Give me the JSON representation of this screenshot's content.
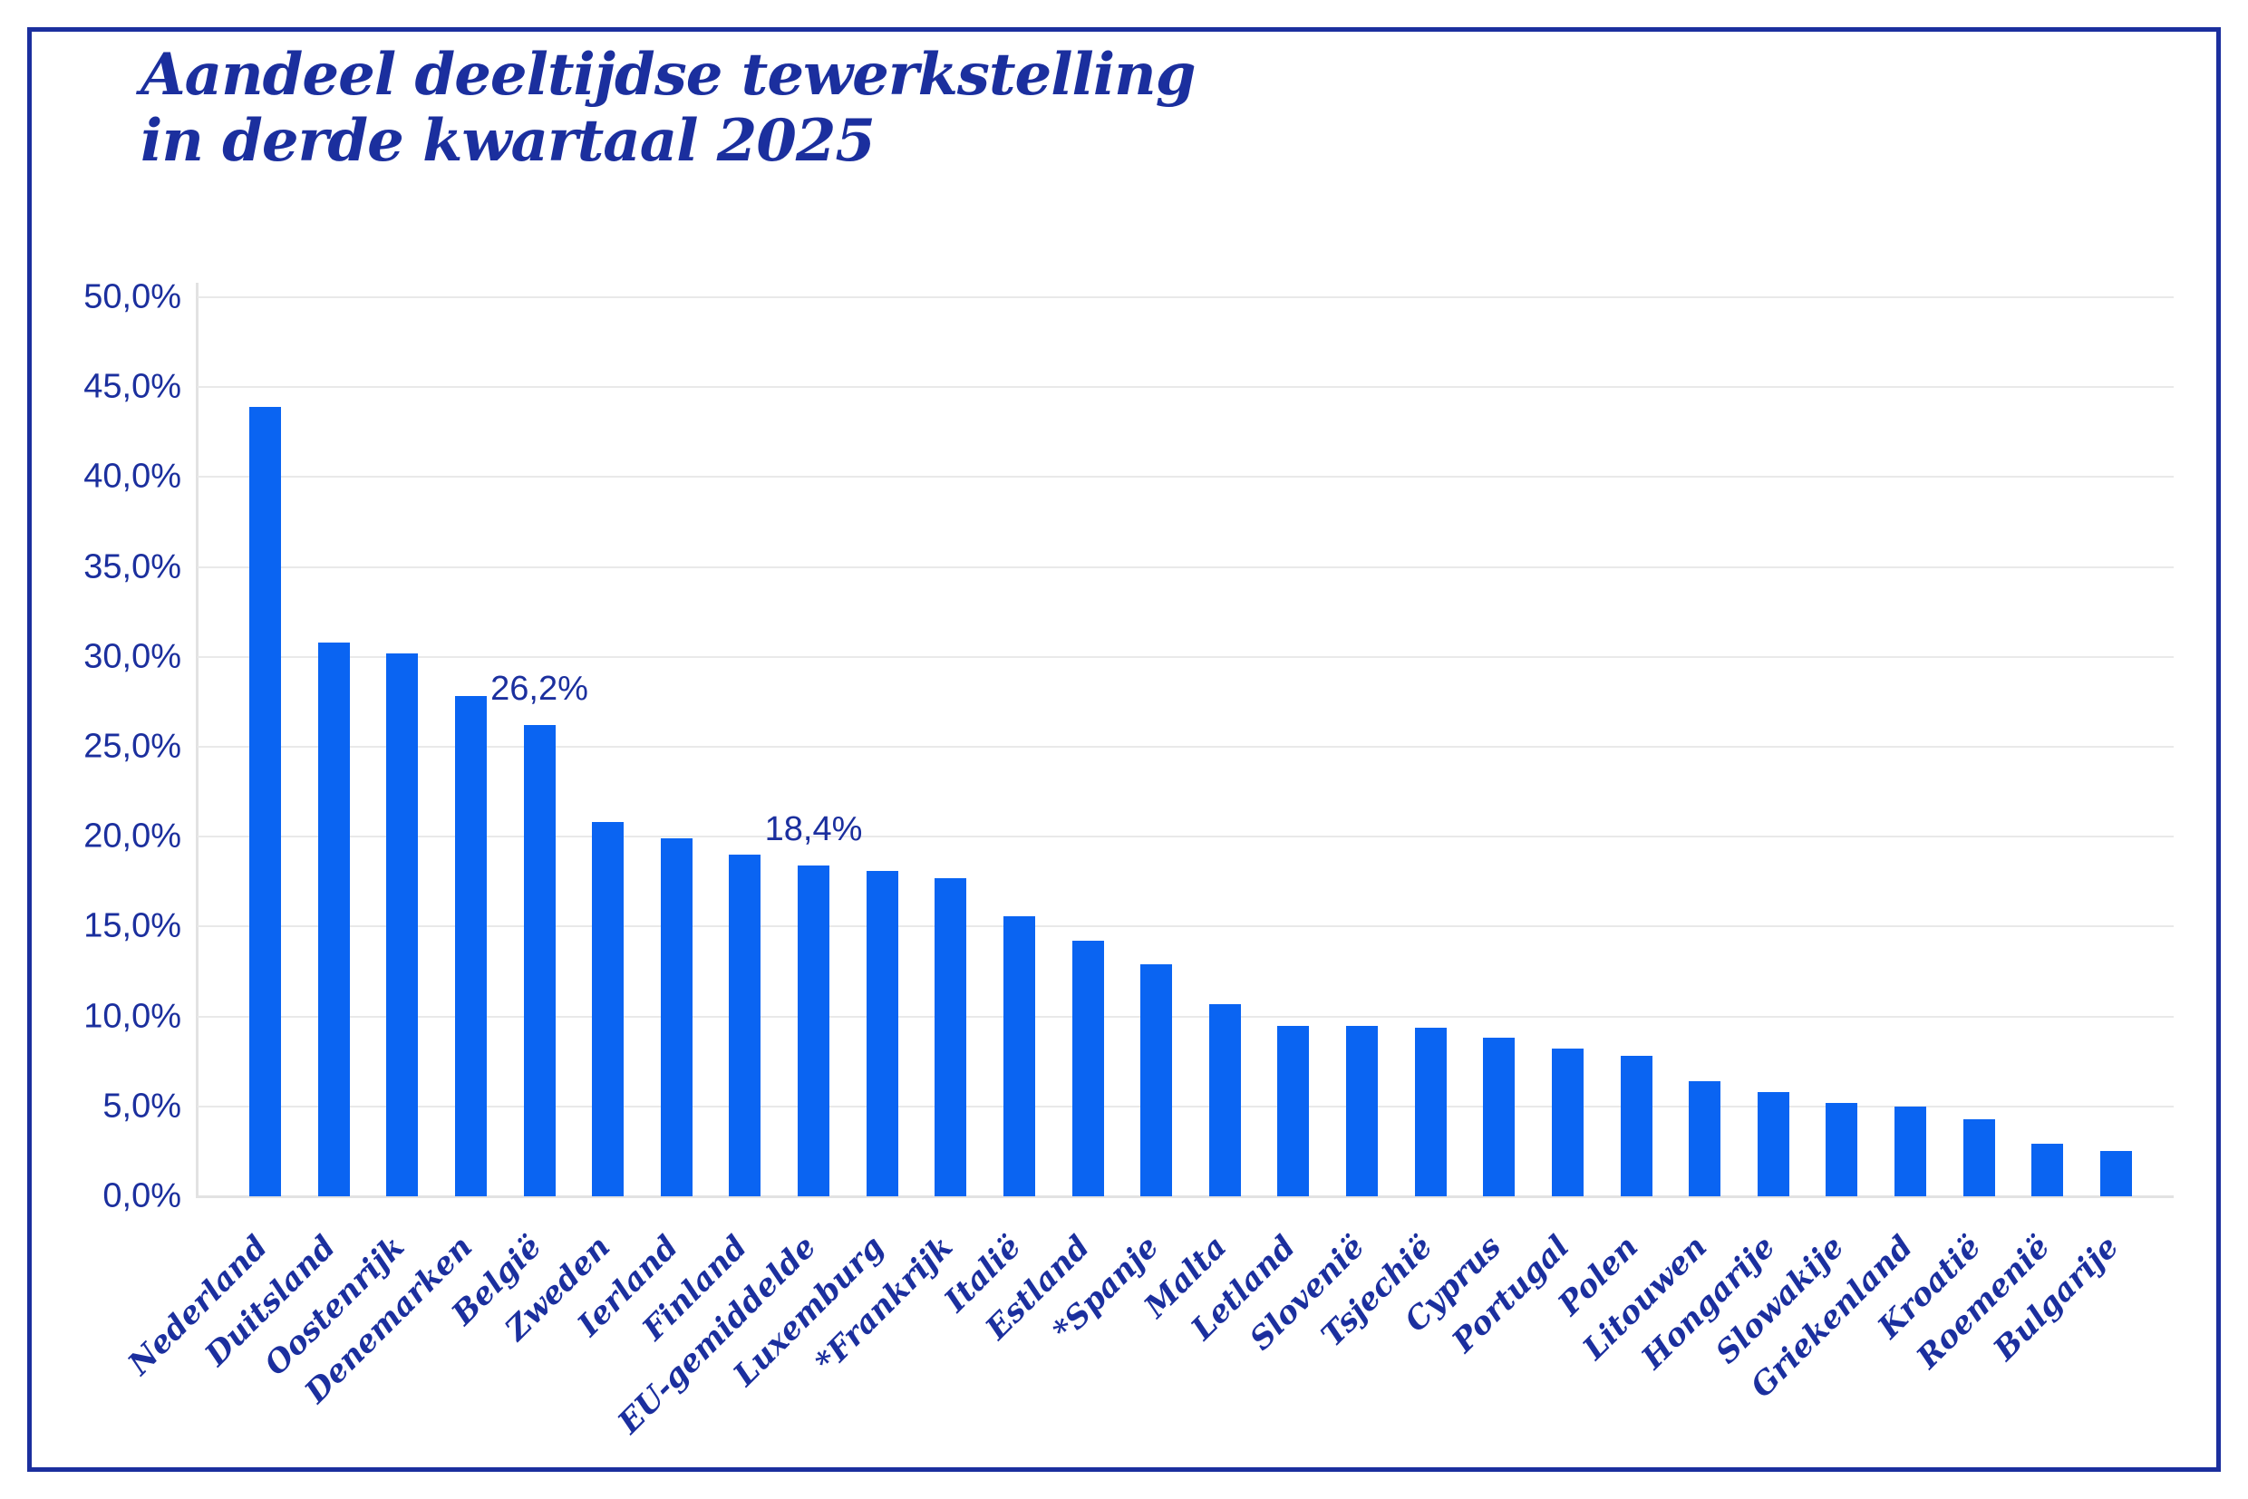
{
  "title": {
    "lines": [
      "Aandeel deeltijdse tewerkstelling",
      "in derde kwartaal 2025"
    ]
  },
  "chart_data": {
    "type": "bar",
    "title": "Aandeel deeltijdse tewerkstelling in derde kwartaal 2025",
    "categories": [
      "Nederland",
      "Duitsland",
      "Oostenrijk",
      "Denemarken",
      "België",
      "Zweden",
      "Ierland",
      "Finland",
      "EU-gemiddelde",
      "Luxemburg",
      "*Frankrijk",
      "Italië",
      "Estland",
      "*Spanje",
      "Malta",
      "Letland",
      "Slovenië",
      "Tsjechië",
      "Cyprus",
      "Portugal",
      "Polen",
      "Litouwen",
      "Hongarije",
      "Slowakije",
      "Griekenland",
      "Kroatië",
      "Roemenië",
      "Bulgarije"
    ],
    "values": [
      43.9,
      30.8,
      30.2,
      27.8,
      26.2,
      20.8,
      19.9,
      19.0,
      18.4,
      18.1,
      17.7,
      15.6,
      14.2,
      12.9,
      10.7,
      9.5,
      9.5,
      9.4,
      8.8,
      8.2,
      7.8,
      6.4,
      5.8,
      5.2,
      5.0,
      4.3,
      2.9,
      2.5
    ],
    "annotations": [
      {
        "category": "België",
        "label": "26,2%"
      },
      {
        "category": "EU-gemiddelde",
        "label": "18,4%"
      }
    ],
    "yticks": [
      "0,0%",
      "5,0%",
      "10,0%",
      "15,0%",
      "20,0%",
      "25,0%",
      "30,0%",
      "35,0%",
      "40,0%",
      "45,0%",
      "50,0%"
    ],
    "ylim": [
      0,
      50
    ],
    "ytick_step": 5,
    "xlabel": "",
    "ylabel": "",
    "grid": "horizontal",
    "legend": false,
    "value_format": "comma-decimal percent",
    "colors": {
      "bar": "#0a64f2",
      "text": "#1b2f9e",
      "gridline": "#e9e9e9",
      "frame_border": "#1b2f9e",
      "background": "#ffffff"
    }
  }
}
